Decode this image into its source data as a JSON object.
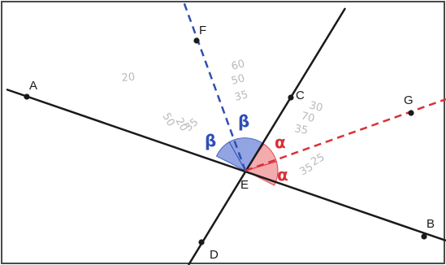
{
  "figure": {
    "points": [
      {
        "id": "A",
        "label": "A"
      },
      {
        "id": "B",
        "label": "B"
      },
      {
        "id": "C",
        "label": "C"
      },
      {
        "id": "D",
        "label": "D"
      },
      {
        "id": "E",
        "label": "E"
      },
      {
        "id": "F",
        "label": "F"
      },
      {
        "id": "G",
        "label": "G"
      }
    ],
    "lines": [
      {
        "name": "AB",
        "style": "solid",
        "color": "#1a1a1a"
      },
      {
        "name": "CD",
        "style": "solid",
        "color": "#1a1a1a"
      },
      {
        "name": "EF",
        "style": "dashed",
        "color": "#2f4fb5"
      },
      {
        "name": "EG",
        "style": "dashed",
        "color": "#d8323a"
      }
    ],
    "angles": [
      {
        "id": "beta-left",
        "symbol": "β",
        "color": "#2f4fb5",
        "fill": "#7f95de"
      },
      {
        "id": "beta-right",
        "symbol": "β",
        "color": "#2f4fb5",
        "fill": "#7f95de"
      },
      {
        "id": "alpha-top",
        "symbol": "α",
        "color": "#d8323a",
        "fill": "#f2a3a5"
      },
      {
        "id": "alpha-bottom",
        "symbol": "α",
        "color": "#d8323a",
        "fill": "#f2a3a5"
      }
    ],
    "background_scribbles": [
      "60",
      "50",
      "35",
      "30",
      "70",
      "35",
      "35",
      "25",
      "50",
      "20",
      "35",
      "20"
    ]
  }
}
